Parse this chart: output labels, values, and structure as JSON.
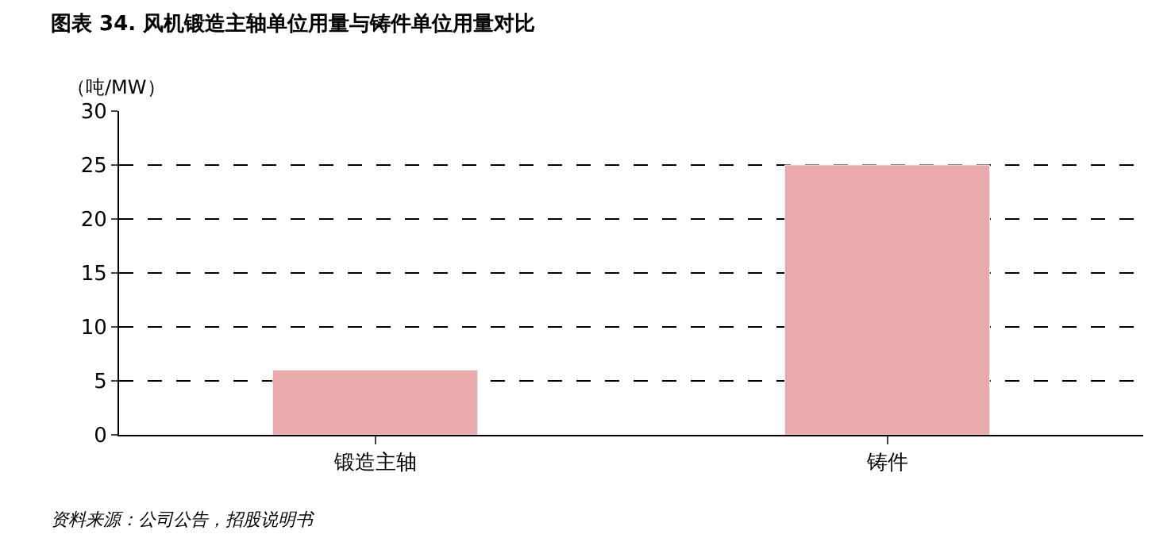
{
  "chart_data": {
    "type": "bar",
    "title": "图表 34. 风机锻造主轴单位用量与铸件单位用量对比",
    "ylabel": "（吨/MW）",
    "categories": [
      "锻造主轴",
      "铸件"
    ],
    "series": [
      {
        "color": "#e9aaab",
        "values": [
          6,
          25
        ]
      }
    ],
    "ylim": [
      0,
      30
    ],
    "yticks": [
      0,
      5,
      10,
      15,
      20,
      25,
      30
    ],
    "grid": "y",
    "annotations": [
      "资料来源：公司公告，招股说明书"
    ]
  }
}
